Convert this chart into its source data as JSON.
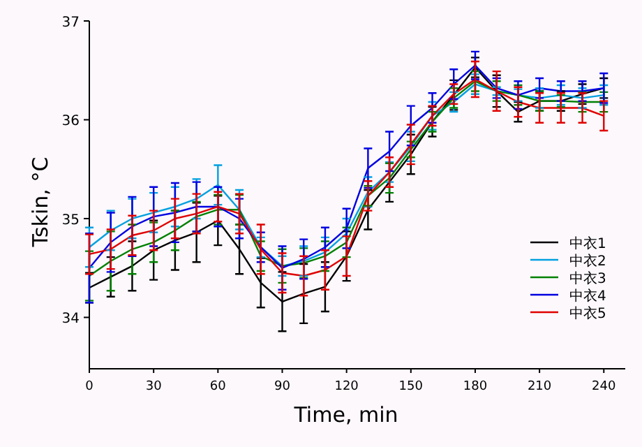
{
  "chart_data": {
    "type": "line",
    "xlabel": "Time, min",
    "ylabel": "Tskin, °C",
    "x": [
      0,
      10,
      20,
      30,
      40,
      50,
      60,
      70,
      80,
      90,
      100,
      110,
      120,
      130,
      140,
      150,
      160,
      170,
      180,
      190,
      200,
      210,
      220,
      230,
      240
    ],
    "xlim": [
      0,
      250
    ],
    "xticks": [
      0,
      30,
      60,
      90,
      120,
      150,
      180,
      210,
      240
    ],
    "ylim": [
      33.48,
      37
    ],
    "yticks": [
      34,
      35,
      36,
      37
    ],
    "grid": false,
    "legend": "bottom right",
    "marker": "none",
    "line_style": "solid",
    "series": [
      {
        "name": "中衣1",
        "color": "#000000",
        "values": [
          34.3,
          34.41,
          34.52,
          34.68,
          34.78,
          34.86,
          34.98,
          34.69,
          34.35,
          34.16,
          34.24,
          34.31,
          34.62,
          35.09,
          35.37,
          35.65,
          35.98,
          36.25,
          36.53,
          36.29,
          36.08,
          36.19,
          36.19,
          36.26,
          36.32
        ],
        "errors": [
          0.15,
          0.2,
          0.25,
          0.3,
          0.3,
          0.3,
          0.25,
          0.25,
          0.25,
          0.3,
          0.3,
          0.25,
          0.25,
          0.2,
          0.2,
          0.2,
          0.15,
          0.15,
          0.1,
          0.16,
          0.1,
          0.1,
          0.1,
          0.1,
          0.1
        ]
      },
      {
        "name": "中衣2",
        "color": "#00a0e0",
        "values": [
          34.71,
          34.88,
          35.0,
          35.06,
          35.12,
          35.2,
          35.34,
          35.09,
          34.71,
          34.52,
          34.57,
          34.66,
          34.85,
          35.27,
          35.47,
          35.73,
          36.04,
          36.18,
          36.36,
          36.29,
          36.25,
          36.22,
          36.25,
          36.22,
          36.25
        ],
        "errors": [
          0.2,
          0.2,
          0.2,
          0.2,
          0.2,
          0.2,
          0.2,
          0.2,
          0.1,
          0.1,
          0.15,
          0.15,
          0.15,
          0.15,
          0.1,
          0.15,
          0.14,
          0.1,
          0.1,
          0.04,
          0.06,
          0.1,
          0.1,
          0.1,
          0.1
        ]
      },
      {
        "name": "中衣3",
        "color": "#008000",
        "values": [
          34.42,
          34.57,
          34.69,
          34.76,
          34.88,
          35.02,
          35.09,
          35.09,
          34.62,
          34.52,
          34.55,
          34.62,
          34.76,
          35.23,
          35.41,
          35.7,
          35.98,
          36.22,
          36.39,
          36.29,
          36.25,
          36.19,
          36.19,
          36.18,
          36.18
        ],
        "errors": [
          0.25,
          0.3,
          0.25,
          0.2,
          0.2,
          0.15,
          0.15,
          0.15,
          0.15,
          0.17,
          0.15,
          0.15,
          0.15,
          0.1,
          0.15,
          0.08,
          0.1,
          0.1,
          0.1,
          0.1,
          0.1,
          0.1,
          0.06,
          0.1,
          0.1
        ]
      },
      {
        "name": "中衣4",
        "color": "#0000e0",
        "values": [
          34.5,
          34.76,
          34.92,
          35.02,
          35.06,
          35.12,
          35.12,
          35.0,
          34.71,
          34.5,
          34.59,
          34.71,
          34.9,
          35.51,
          35.68,
          35.94,
          36.12,
          36.36,
          36.55,
          36.32,
          36.25,
          36.32,
          36.29,
          36.29,
          36.32
        ],
        "errors": [
          0.35,
          0.3,
          0.3,
          0.3,
          0.3,
          0.25,
          0.2,
          0.2,
          0.15,
          0.22,
          0.2,
          0.2,
          0.2,
          0.2,
          0.2,
          0.2,
          0.15,
          0.15,
          0.14,
          0.1,
          0.14,
          0.1,
          0.1,
          0.1,
          0.15
        ]
      },
      {
        "name": "中衣5",
        "color": "#e00000",
        "values": [
          34.64,
          34.69,
          34.83,
          34.88,
          35.0,
          35.05,
          35.12,
          35.05,
          34.69,
          34.45,
          34.42,
          34.48,
          34.62,
          35.23,
          35.47,
          35.75,
          36.04,
          36.26,
          36.41,
          36.29,
          36.18,
          36.12,
          36.12,
          36.12,
          36.04
        ],
        "errors": [
          0.2,
          0.2,
          0.2,
          0.2,
          0.2,
          0.2,
          0.15,
          0.2,
          0.25,
          0.2,
          0.2,
          0.2,
          0.2,
          0.15,
          0.15,
          0.2,
          0.1,
          0.1,
          0.18,
          0.2,
          0.15,
          0.15,
          0.15,
          0.15,
          0.15
        ]
      }
    ]
  }
}
